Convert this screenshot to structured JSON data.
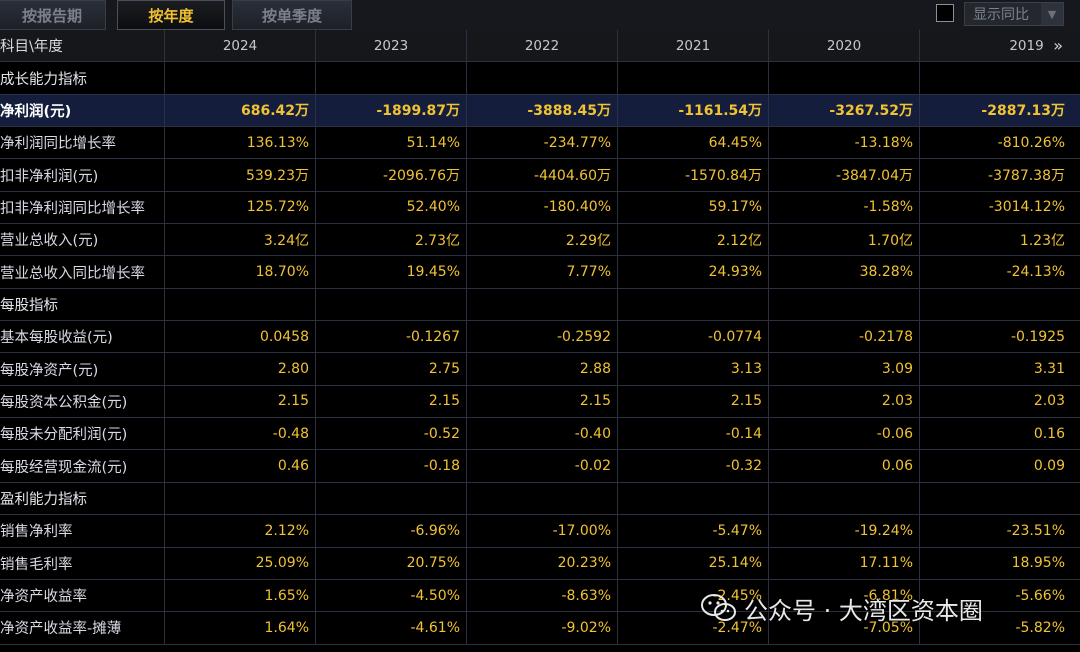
{
  "tabs": [
    {
      "label": "按报告期",
      "active": false
    },
    {
      "label": "按年度",
      "active": true
    },
    {
      "label": "按单季度",
      "active": false
    }
  ],
  "options": {
    "show_yoy_label": "显示同比",
    "show_yoy_checked": false
  },
  "table": {
    "header_label": "科目\\年度",
    "years": [
      "2024",
      "2023",
      "2022",
      "2021",
      "2020",
      "2019"
    ],
    "expand_icon": "double-chevron-right-icon",
    "rows": [
      {
        "type": "section",
        "label": "成长能力指标"
      },
      {
        "type": "highlight",
        "label": "净利润(元)",
        "values": [
          "686.42万",
          "-1899.87万",
          "-3888.45万",
          "-1161.54万",
          "-3267.52万",
          "-2887.13万"
        ]
      },
      {
        "type": "data",
        "label": "净利润同比增长率",
        "values": [
          "136.13%",
          "51.14%",
          "-234.77%",
          "64.45%",
          "-13.18%",
          "-810.26%"
        ]
      },
      {
        "type": "data",
        "label": "扣非净利润(元)",
        "values": [
          "539.23万",
          "-2096.76万",
          "-4404.60万",
          "-1570.84万",
          "-3847.04万",
          "-3787.38万"
        ]
      },
      {
        "type": "data",
        "label": "扣非净利润同比增长率",
        "values": [
          "125.72%",
          "52.40%",
          "-180.40%",
          "59.17%",
          "-1.58%",
          "-3014.12%"
        ]
      },
      {
        "type": "data",
        "label": "营业总收入(元)",
        "values": [
          "3.24亿",
          "2.73亿",
          "2.29亿",
          "2.12亿",
          "1.70亿",
          "1.23亿"
        ]
      },
      {
        "type": "data",
        "label": "营业总收入同比增长率",
        "values": [
          "18.70%",
          "19.45%",
          "7.77%",
          "24.93%",
          "38.28%",
          "-24.13%"
        ]
      },
      {
        "type": "section",
        "label": "每股指标"
      },
      {
        "type": "data",
        "label": "基本每股收益(元)",
        "values": [
          "0.0458",
          "-0.1267",
          "-0.2592",
          "-0.0774",
          "-0.2178",
          "-0.1925"
        ]
      },
      {
        "type": "data",
        "label": "每股净资产(元)",
        "values": [
          "2.80",
          "2.75",
          "2.88",
          "3.13",
          "3.09",
          "3.31"
        ]
      },
      {
        "type": "data",
        "label": "每股资本公积金(元)",
        "values": [
          "2.15",
          "2.15",
          "2.15",
          "2.15",
          "2.03",
          "2.03"
        ]
      },
      {
        "type": "data",
        "label": "每股未分配利润(元)",
        "values": [
          "-0.48",
          "-0.52",
          "-0.40",
          "-0.14",
          "-0.06",
          "0.16"
        ]
      },
      {
        "type": "data",
        "label": "每股经营现金流(元)",
        "values": [
          "0.46",
          "-0.18",
          "-0.02",
          "-0.32",
          "0.06",
          "0.09"
        ]
      },
      {
        "type": "section",
        "label": "盈利能力指标"
      },
      {
        "type": "data",
        "label": "销售净利率",
        "values": [
          "2.12%",
          "-6.96%",
          "-17.00%",
          "-5.47%",
          "-19.24%",
          "-23.51%"
        ]
      },
      {
        "type": "data",
        "label": "销售毛利率",
        "values": [
          "25.09%",
          "20.75%",
          "20.23%",
          "25.14%",
          "17.11%",
          "18.95%"
        ]
      },
      {
        "type": "data",
        "label": "净资产收益率",
        "values": [
          "1.65%",
          "-4.50%",
          "-8.63%",
          "-2.45%",
          "-6.81%",
          "-5.66%"
        ]
      },
      {
        "type": "data",
        "label": "净资产收益率-摊薄",
        "values": [
          "1.64%",
          "-4.61%",
          "-9.02%",
          "-2.47%",
          "-7.05%",
          "-5.82%"
        ]
      }
    ]
  },
  "watermark": {
    "text": "公众号 · 大湾区资本圈",
    "icon": "wechat-icon"
  },
  "colors": {
    "value": "#f1c232",
    "active_tab": "#f3c12e",
    "highlight_row": "#141d3c",
    "background": "#000000"
  }
}
